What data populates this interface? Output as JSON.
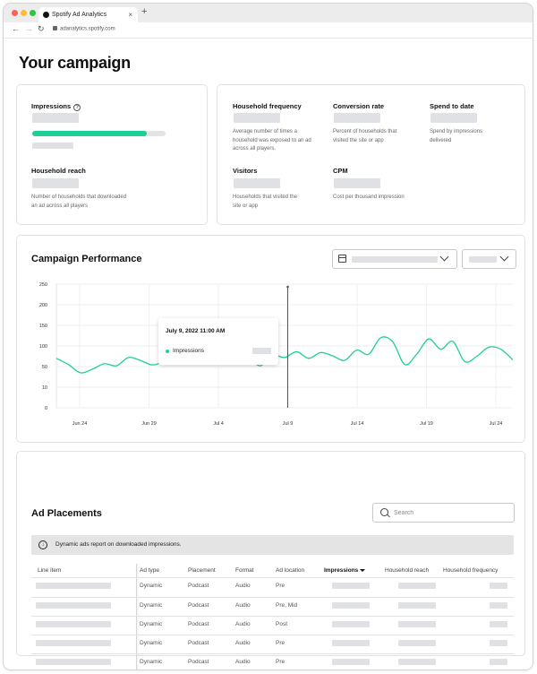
{
  "browser": {
    "tab_title": "Spotify Ad Analytics",
    "tab_close": "×",
    "new_tab": "+",
    "back": "←",
    "forward": "→",
    "reload": "↻",
    "url": "adanalytics.spotify.com"
  },
  "page": {
    "title": "Your campaign"
  },
  "metrics": {
    "impressions": {
      "label": "Impressions",
      "help": "?",
      "progress": 0.86
    },
    "household_reach": {
      "label": "Household reach",
      "desc": "Number of households that downloaded an ad across all players"
    },
    "household_frequency": {
      "label": "Household frequency",
      "desc": "Average number of times a household was exposed to an ad across all players."
    },
    "conversion_rate": {
      "label": "Conversion rate",
      "desc": "Percent of households that visited the site or app"
    },
    "spend_to_date": {
      "label": "Spend to date",
      "desc": "Spend by impressions delivered"
    },
    "visitors": {
      "label": "Visitors",
      "desc": "Households that visited the site or app"
    },
    "cpm": {
      "label": "CPM",
      "desc": "Cost per thousand impression"
    }
  },
  "performance": {
    "title": "Campaign Performance",
    "tooltip": {
      "date": "July 9, 2022 11:00 AM",
      "series": "Impressions"
    }
  },
  "chart_data": {
    "type": "line",
    "title": "Campaign Performance",
    "xlabel": "",
    "ylabel": "",
    "ytick_labels": [
      "250",
      "200",
      "150",
      "100",
      "50",
      "10",
      "0"
    ],
    "xtick_labels": [
      "Jun 24",
      "Jun 29",
      "Jul 4",
      "Jul 9",
      "Jul 14",
      "Jul 19",
      "Jul 24"
    ],
    "x_day_range": [
      0,
      33
    ],
    "grid": true,
    "line_color": "#1ed097",
    "series": [
      {
        "name": "Impressions",
        "points": [
          [
            0,
            70
          ],
          [
            1,
            55
          ],
          [
            2,
            38
          ],
          [
            3,
            45
          ],
          [
            4,
            57
          ],
          [
            5,
            52
          ],
          [
            6,
            72
          ],
          [
            7,
            65
          ],
          [
            8,
            54
          ],
          [
            9,
            64
          ],
          [
            10,
            84
          ],
          [
            11,
            70
          ],
          [
            12,
            80
          ],
          [
            13,
            100
          ],
          [
            14,
            97
          ],
          [
            15,
            57
          ],
          [
            16,
            68
          ],
          [
            17,
            52
          ],
          [
            18,
            78
          ],
          [
            19,
            72
          ],
          [
            20,
            86
          ],
          [
            21,
            70
          ],
          [
            22,
            84
          ],
          [
            23,
            76
          ],
          [
            24,
            65
          ],
          [
            25,
            90
          ],
          [
            26,
            80
          ],
          [
            27,
            120
          ],
          [
            28,
            110
          ],
          [
            29,
            55
          ],
          [
            30,
            80
          ],
          [
            31,
            117
          ],
          [
            32,
            92
          ],
          [
            33,
            111
          ],
          [
            34,
            62
          ],
          [
            35,
            75
          ],
          [
            36,
            97
          ],
          [
            37,
            92
          ],
          [
            38,
            66
          ]
        ]
      }
    ]
  },
  "placements": {
    "title": "Ad Placements",
    "search_placeholder": "Search",
    "banner": "Dynamic ads report on downloaded impressions.",
    "columns": [
      "Line item",
      "Ad type",
      "Placement",
      "Format",
      "Ad location",
      "Impressions",
      "Household reach",
      "Household frequency"
    ],
    "rows": [
      {
        "ad_type": "Dynamic",
        "placement": "Podcast",
        "format": "Audio",
        "location": "Pre"
      },
      {
        "ad_type": "Dynamic",
        "placement": "Podcast",
        "format": "Audio",
        "location": "Pre, Mid"
      },
      {
        "ad_type": "Dynamic",
        "placement": "Podcast",
        "format": "Audio",
        "location": "Post"
      },
      {
        "ad_type": "Dynamic",
        "placement": "Podcast",
        "format": "Audio",
        "location": "Pre"
      },
      {
        "ad_type": "Dynamic",
        "placement": "Podcast",
        "format": "Audio",
        "location": "Pre"
      }
    ]
  }
}
